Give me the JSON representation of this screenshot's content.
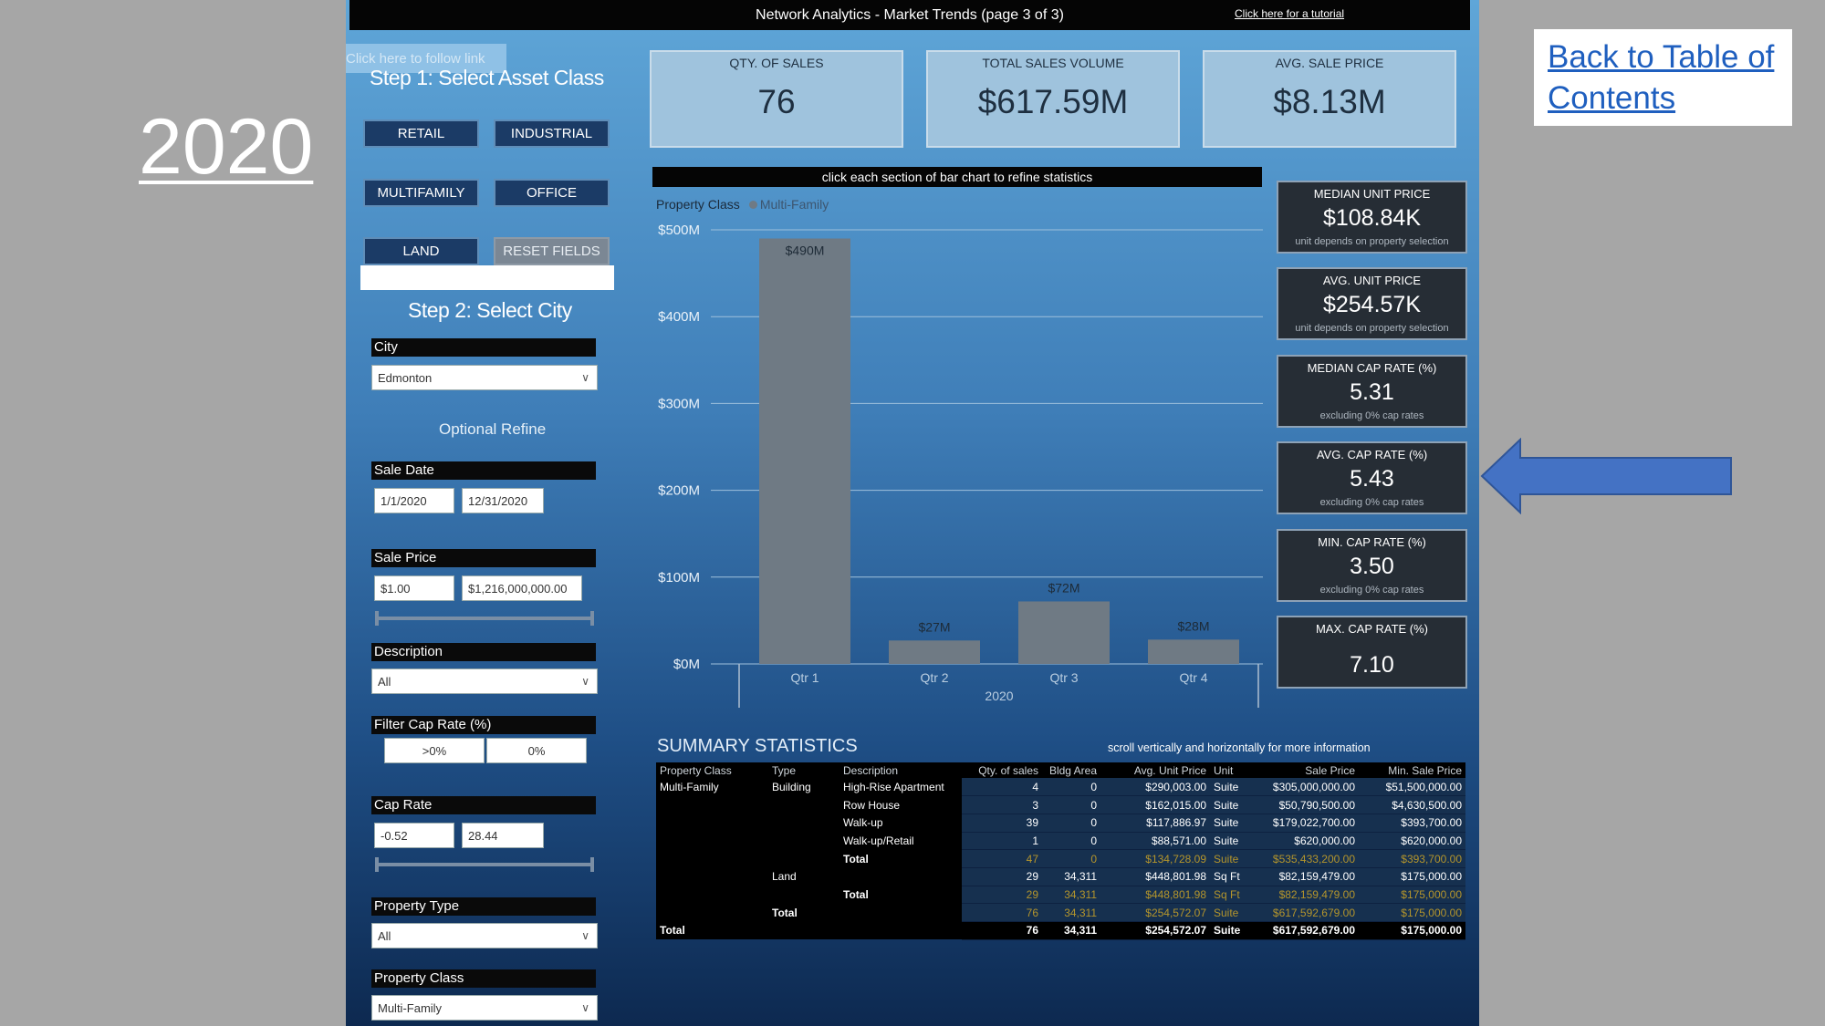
{
  "slide": {
    "year": "2020",
    "toc_link": "Back to Table of Contents"
  },
  "header": {
    "title": "Network Analytics - Market Trends (page 3 of 3)",
    "tutorial_link": "Click here for a tutorial"
  },
  "left_panel": {
    "follow_link": "Click here to follow link",
    "step1": "Step 1: Select Asset Class",
    "buttons": {
      "retail": "RETAIL",
      "industrial": "INDUSTRIAL",
      "multifamily": "MULTIFAMILY",
      "office": "OFFICE",
      "land": "LAND",
      "reset": "RESET FIELDS"
    },
    "step2": "Step 2: Select City",
    "city": {
      "label": "City",
      "value": "Edmonton"
    },
    "optional": "Optional Refine",
    "sale_date": {
      "label": "Sale Date",
      "from": "1/1/2020",
      "to": "12/31/2020"
    },
    "sale_price": {
      "label": "Sale Price",
      "min": "$1.00",
      "max": "$1,216,000,000.00"
    },
    "description": {
      "label": "Description",
      "value": "All"
    },
    "filter_cap": {
      "label": "Filter Cap Rate (%)",
      "opt1": ">0%",
      "opt2": "0%"
    },
    "cap_rate": {
      "label": "Cap Rate",
      "min": "-0.52",
      "max": "28.44"
    },
    "property_type": {
      "label": "Property Type",
      "value": "All"
    },
    "property_class": {
      "label": "Property Class",
      "value": "Multi-Family"
    }
  },
  "cards": {
    "qty": {
      "title": "QTY. OF SALES",
      "value": "76"
    },
    "volume": {
      "title": "TOTAL SALES VOLUME",
      "value": "$617.59M"
    },
    "avg": {
      "title": "AVG. SALE PRICE",
      "value": "$8.13M"
    }
  },
  "chart_hint": "click each section of bar chart to refine statistics",
  "legend": {
    "title": "Property Class",
    "series": "Multi-Family"
  },
  "chart_data": {
    "type": "bar",
    "categories": [
      "Qtr 1",
      "Qtr 2",
      "Qtr 3",
      "Qtr 4"
    ],
    "values": [
      490,
      27,
      72,
      28
    ],
    "data_labels": [
      "$490M",
      "$27M",
      "$72M",
      "$28M"
    ],
    "x_group_label": "2020",
    "y_ticks": [
      "$0M",
      "$100M",
      "$200M",
      "$300M",
      "$400M",
      "$500M"
    ],
    "ylim": [
      0,
      500
    ],
    "bar_color": "#6f7a84",
    "grid": true
  },
  "stats": [
    {
      "title": "MEDIAN UNIT PRICE",
      "value": "$108.84K",
      "note": "unit depends on property selection"
    },
    {
      "title": "AVG. UNIT PRICE",
      "value": "$254.57K",
      "note": "unit depends on property selection"
    },
    {
      "title": "MEDIAN CAP RATE (%)",
      "value": "5.31",
      "note": "excluding 0% cap rates"
    },
    {
      "title": "AVG. CAP RATE (%)",
      "value": "5.43",
      "note": "excluding 0% cap rates"
    },
    {
      "title": "MIN. CAP RATE (%)",
      "value": "3.50",
      "note": "excluding 0% cap rates"
    },
    {
      "title": "MAX. CAP RATE (%)",
      "value": "7.10",
      "note": ""
    }
  ],
  "summary": {
    "title": "SUMMARY STATISTICS",
    "hint": "scroll vertically and horizontally for more information",
    "columns": [
      "Property Class",
      "Type",
      "Description",
      "Qty. of sales",
      "Bldg Area",
      "Avg. Unit Price",
      "Unit",
      "Sale Price",
      "Min. Sale Price"
    ],
    "rows": [
      {
        "cls": "Multi-Family",
        "type": "Building",
        "desc": "High-Rise Apartment",
        "qty": "4",
        "area": "0",
        "avg": "$290,003.00",
        "unit": "Suite",
        "price": "$305,000,000.00",
        "min": "$51,500,000.00",
        "kind": "row"
      },
      {
        "cls": "",
        "type": "",
        "desc": "Row House",
        "qty": "3",
        "area": "0",
        "avg": "$162,015.00",
        "unit": "Suite",
        "price": "$50,790,500.00",
        "min": "$4,630,500.00",
        "kind": "row"
      },
      {
        "cls": "",
        "type": "",
        "desc": "Walk-up",
        "qty": "39",
        "area": "0",
        "avg": "$117,886.97",
        "unit": "Suite",
        "price": "$179,022,700.00",
        "min": "$393,700.00",
        "kind": "row"
      },
      {
        "cls": "",
        "type": "",
        "desc": "Walk-up/Retail",
        "qty": "1",
        "area": "0",
        "avg": "$88,571.00",
        "unit": "Suite",
        "price": "$620,000.00",
        "min": "$620,000.00",
        "kind": "row"
      },
      {
        "cls": "",
        "type": "",
        "desc": "Total",
        "qty": "47",
        "area": "0",
        "avg": "$134,728.09",
        "unit": "Suite",
        "price": "$535,433,200.00",
        "min": "$393,700.00",
        "kind": "sub"
      },
      {
        "cls": "",
        "type": "Land",
        "desc": "",
        "qty": "29",
        "area": "34,311",
        "avg": "$448,801.98",
        "unit": "Sq Ft",
        "price": "$82,159,479.00",
        "min": "$175,000.00",
        "kind": "row"
      },
      {
        "cls": "",
        "type": "",
        "desc": "Total",
        "qty": "29",
        "area": "34,311",
        "avg": "$448,801.98",
        "unit": "Sq Ft",
        "price": "$82,159,479.00",
        "min": "$175,000.00",
        "kind": "sub"
      },
      {
        "cls": "",
        "type": "Total",
        "desc": "",
        "qty": "76",
        "area": "34,311",
        "avg": "$254,572.07",
        "unit": "Suite",
        "price": "$617,592,679.00",
        "min": "$175,000.00",
        "kind": "sub"
      },
      {
        "cls": "Total",
        "type": "",
        "desc": "",
        "qty": "76",
        "area": "34,311",
        "avg": "$254,572.07",
        "unit": "Suite",
        "price": "$617,592,679.00",
        "min": "$175,000.00",
        "kind": "grand"
      }
    ]
  }
}
